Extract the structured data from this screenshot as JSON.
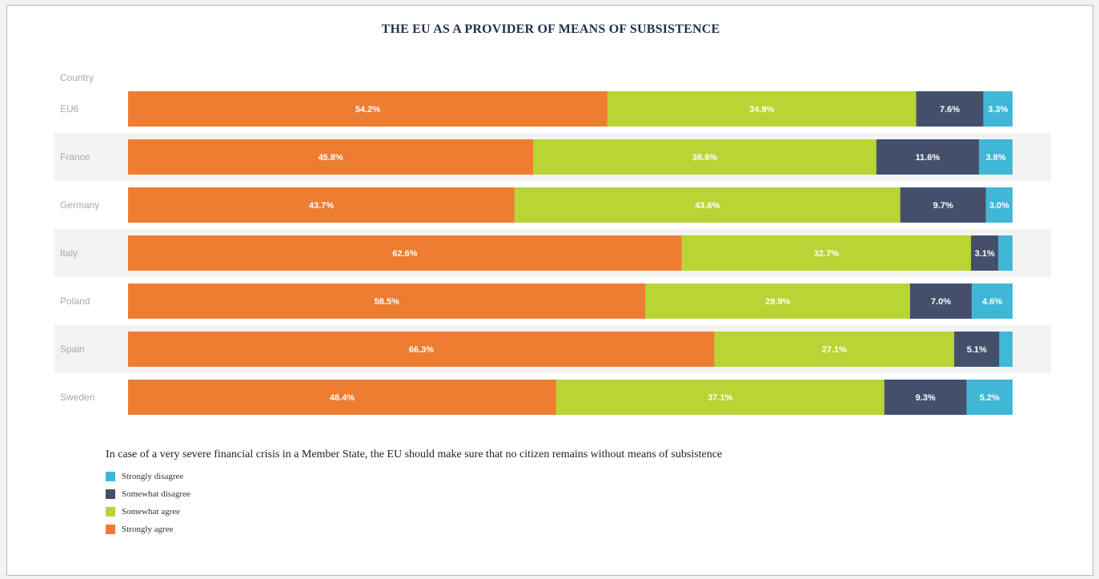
{
  "colors": {
    "strongly_agree": "#ed7d31",
    "somewhat_agree": "#b8d435",
    "somewhat_disagree": "#44506b",
    "strongly_disagree": "#3fb7d6"
  },
  "chart_data": {
    "type": "bar",
    "orientation": "horizontal",
    "stacked": true,
    "normalized": true,
    "title": "THE EU AS A PROVIDER OF MEANS OF SUBSISTENCE",
    "row_header": "Country",
    "categories": [
      "EU6",
      "France",
      "Germany",
      "Italy",
      "Poland",
      "Spain",
      "Sweden"
    ],
    "legend_title": "In case of a very severe financial crisis in a Member State, the EU should make sure that no citizen remains without means of subsistence",
    "legend_order": [
      "Strongly disagree",
      "Somewhat disagree",
      "Somewhat agree",
      "Strongly agree"
    ],
    "series": [
      {
        "name": "Strongly agree",
        "values": [
          54.2,
          45.8,
          43.7,
          62.6,
          58.5,
          66.3,
          48.4
        ],
        "labels": [
          "54.2%",
          "45.8%",
          "43.7%",
          "62.6%",
          "58.5%",
          "66.3%",
          "48.4%"
        ]
      },
      {
        "name": "Somewhat agree",
        "values": [
          34.9,
          38.8,
          43.6,
          32.7,
          29.9,
          27.1,
          37.1
        ],
        "labels": [
          "34.9%",
          "38.8%",
          "43.6%",
          "32.7%",
          "29.9%",
          "27.1%",
          "37.1%"
        ]
      },
      {
        "name": "Somewhat disagree",
        "values": [
          7.6,
          11.6,
          9.7,
          3.1,
          7.0,
          5.1,
          9.3
        ],
        "labels": [
          "7.6%",
          "11.6%",
          "9.7%",
          "3.1%",
          "7.0%",
          "5.1%",
          "9.3%"
        ]
      },
      {
        "name": "Strongly disagree",
        "values": [
          3.3,
          3.8,
          3.0,
          1.6,
          4.6,
          1.5,
          5.2
        ],
        "labels": [
          "3.3%",
          "3.8%",
          "3.0%",
          "",
          "4.6%",
          "",
          "5.2%"
        ]
      }
    ],
    "xlim": [
      0,
      100
    ],
    "grid": false
  }
}
